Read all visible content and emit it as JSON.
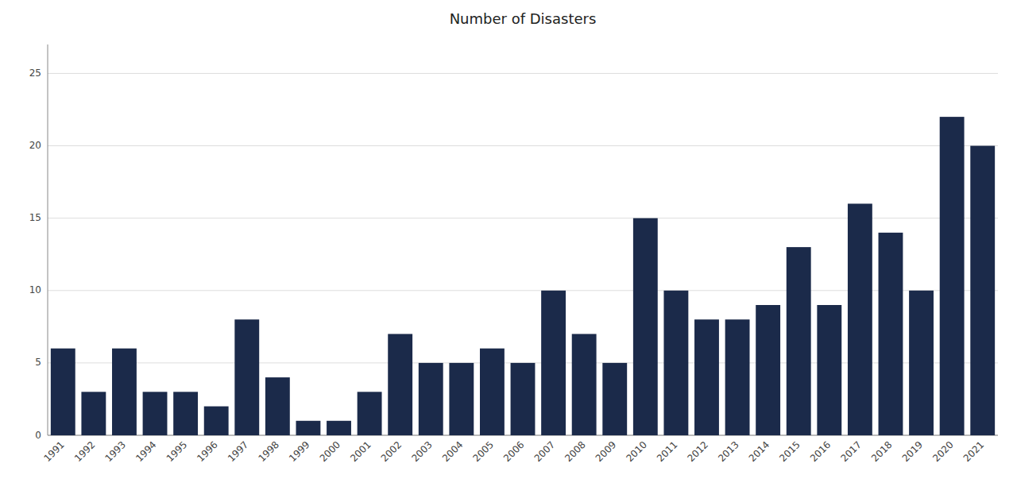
{
  "chart_data": {
    "type": "bar",
    "title": "Number of Disasters",
    "categories": [
      "1991",
      "1992",
      "1993",
      "1994",
      "1995",
      "1996",
      "1997",
      "1998",
      "1999",
      "2000",
      "2001",
      "2002",
      "2003",
      "2004",
      "2005",
      "2006",
      "2007",
      "2008",
      "2009",
      "2010",
      "2011",
      "2012",
      "2013",
      "2014",
      "2015",
      "2016",
      "2017",
      "2018",
      "2019",
      "2020",
      "2021"
    ],
    "values": [
      6,
      3,
      6,
      3,
      3,
      2,
      8,
      4,
      1,
      1,
      3,
      7,
      5,
      5,
      6,
      5,
      10,
      7,
      5,
      15,
      10,
      8,
      8,
      9,
      13,
      9,
      16,
      14,
      10,
      22,
      20
    ],
    "color": "#1b2a4a",
    "ylim": [
      0,
      27
    ],
    "yticks": [
      0,
      5,
      10,
      15,
      20,
      25
    ],
    "grid": true
  }
}
